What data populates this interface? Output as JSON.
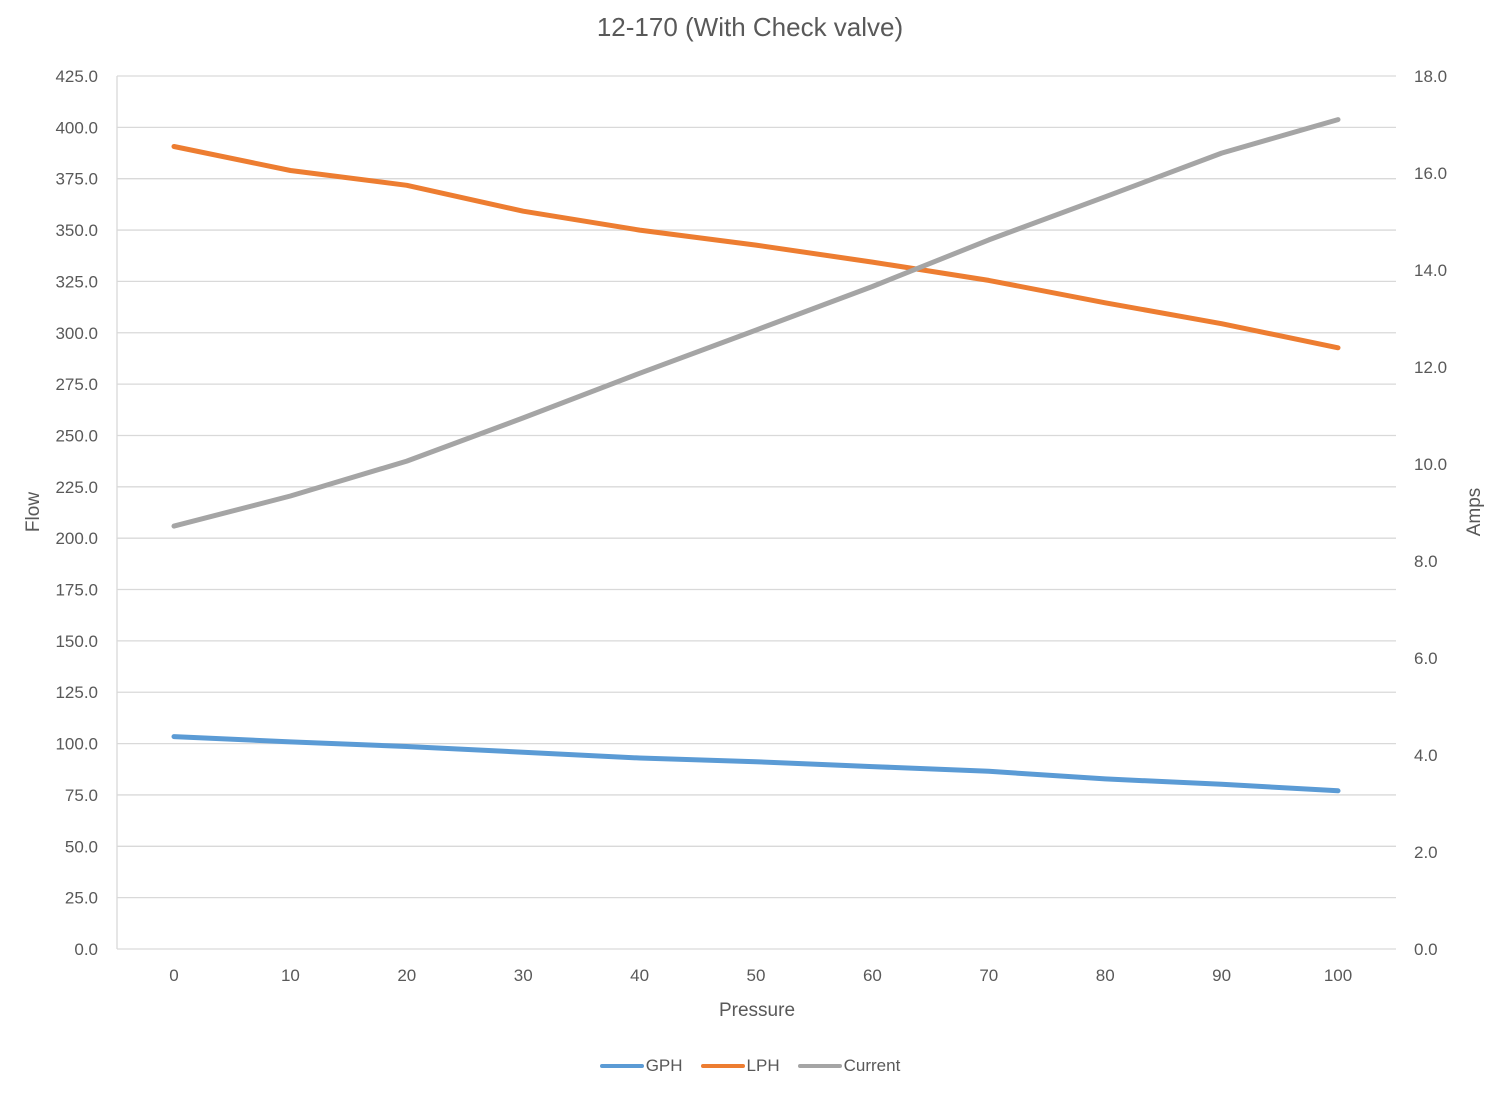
{
  "chart_data": {
    "type": "line",
    "title": "12-170 (With Check valve)",
    "xlabel": "Pressure",
    "ylabel": "Flow",
    "y2label": "Amps",
    "x": [
      0,
      10,
      20,
      30,
      40,
      50,
      60,
      70,
      80,
      90,
      100
    ],
    "x_tick_labels": [
      "0",
      "10",
      "20",
      "30",
      "40",
      "50",
      "60",
      "70",
      "80",
      "90",
      "100"
    ],
    "ylim": [
      0,
      425
    ],
    "y_tick_labels": [
      "0.0",
      "25.0",
      "50.0",
      "75.0",
      "100.0",
      "125.0",
      "150.0",
      "175.0",
      "200.0",
      "225.0",
      "250.0",
      "275.0",
      "300.0",
      "325.0",
      "350.0",
      "375.0",
      "400.0",
      "425.0"
    ],
    "y2lim": [
      0,
      18
    ],
    "y2_tick_labels": [
      "0.0",
      "2.0",
      "4.0",
      "6.0",
      "8.0",
      "10.0",
      "12.0",
      "14.0",
      "16.0",
      "18.0"
    ],
    "grid": true,
    "legend_position": "bottom",
    "series": [
      {
        "name": "GPH",
        "axis": "left",
        "color": "#5B9BD5",
        "values": [
          103.4,
          100.8,
          98.6,
          95.8,
          93.0,
          91.2,
          88.8,
          86.5,
          82.8,
          80.2,
          77.0
        ]
      },
      {
        "name": "LPH",
        "axis": "left",
        "color": "#ED7D31",
        "values": [
          390.7,
          379.0,
          371.8,
          359.2,
          350.0,
          342.7,
          334.4,
          325.5,
          314.6,
          304.4,
          292.7
        ]
      },
      {
        "name": "Current",
        "axis": "right",
        "color": "#A5A5A5",
        "values": [
          8.72,
          9.34,
          10.06,
          10.95,
          11.87,
          12.76,
          13.66,
          14.62,
          15.51,
          16.41,
          17.1
        ]
      }
    ]
  },
  "legend": {
    "items": [
      {
        "label": "GPH",
        "color": "#5B9BD5"
      },
      {
        "label": "LPH",
        "color": "#ED7D31"
      },
      {
        "label": "Current",
        "color": "#A5A5A5"
      }
    ]
  }
}
